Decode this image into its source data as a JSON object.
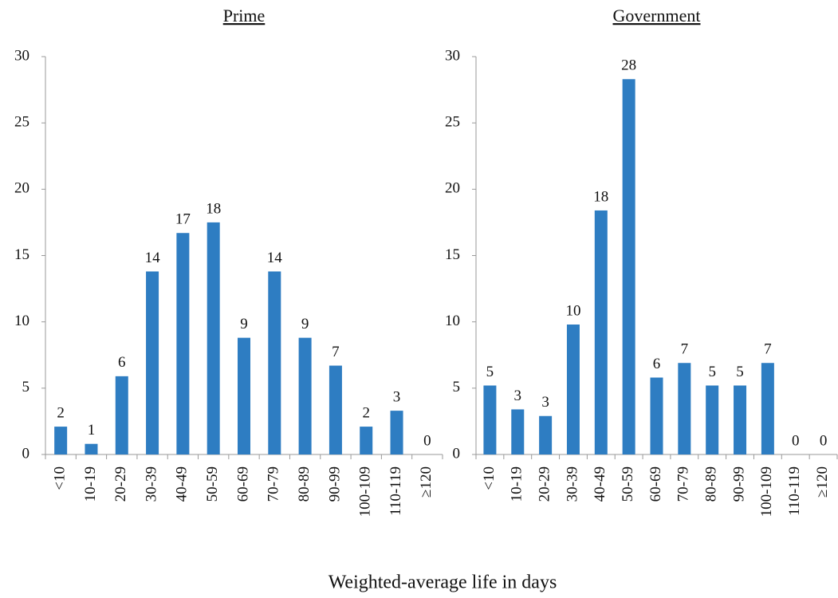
{
  "chart_data": [
    {
      "type": "bar",
      "title": "Prime",
      "categories": [
        "<10",
        "10-19",
        "20-29",
        "30-39",
        "40-49",
        "50-59",
        "60-69",
        "70-79",
        "80-89",
        "90-99",
        "100-109",
        "110-119",
        "≥120"
      ],
      "values": [
        2.1,
        0.8,
        5.9,
        13.8,
        16.7,
        17.5,
        8.8,
        13.8,
        8.8,
        6.7,
        2.1,
        3.3,
        0
      ],
      "value_labels": [
        "2",
        "1",
        "6",
        "14",
        "17",
        "18",
        "9",
        "14",
        "9",
        "7",
        "2",
        "3",
        "0"
      ],
      "color": "#2e7dc2",
      "ylim": [
        0,
        30
      ],
      "yticks": [
        0,
        5,
        10,
        15,
        20,
        25,
        30
      ],
      "grid": false
    },
    {
      "type": "bar",
      "title": "Government",
      "categories": [
        "<10",
        "10-19",
        "20-29",
        "30-39",
        "40-49",
        "50-59",
        "60-69",
        "70-79",
        "80-89",
        "90-99",
        "100-109",
        "110-119",
        "≥120"
      ],
      "values": [
        5.2,
        3.4,
        2.9,
        9.8,
        18.4,
        28.3,
        5.8,
        6.9,
        5.2,
        5.2,
        6.9,
        0,
        0
      ],
      "value_labels": [
        "5",
        "3",
        "3",
        "10",
        "18",
        "28",
        "6",
        "7",
        "5",
        "5",
        "7",
        "0",
        "0"
      ],
      "color": "#2e7dc2",
      "ylim": [
        0,
        30
      ],
      "yticks": [
        0,
        5,
        10,
        15,
        20,
        25,
        30
      ],
      "grid": false
    }
  ],
  "x_label": "Weighted-average life in days"
}
